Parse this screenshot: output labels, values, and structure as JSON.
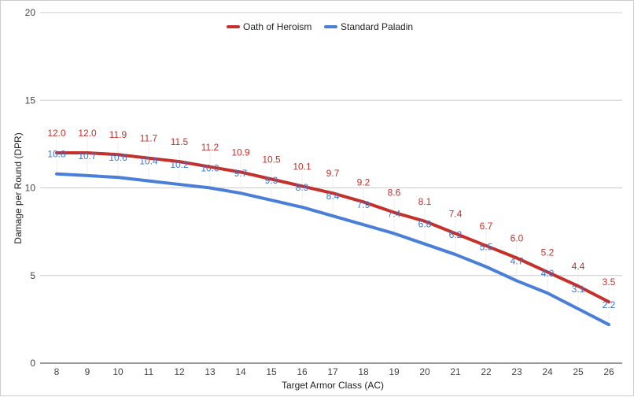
{
  "chart_data": {
    "type": "line",
    "title": "",
    "xlabel": "Target Armor Class (AC)",
    "ylabel": "Damage per Round (DPR)",
    "x": [
      8,
      9,
      10,
      11,
      12,
      13,
      14,
      15,
      16,
      17,
      18,
      19,
      20,
      21,
      22,
      23,
      24,
      25,
      26
    ],
    "ylim": [
      0,
      20
    ],
    "yticks": [
      0,
      5,
      10,
      15,
      20
    ],
    "grid": true,
    "legend_position": "top",
    "data_labels": true,
    "series": [
      {
        "name": "Oath of Heroism",
        "color": "#c5302a",
        "values": [
          12.0,
          12.0,
          11.9,
          11.7,
          11.5,
          11.2,
          10.9,
          10.5,
          10.1,
          9.7,
          9.2,
          8.6,
          8.1,
          7.4,
          6.7,
          6.0,
          5.2,
          4.4,
          3.5
        ]
      },
      {
        "name": "Standard Paladin",
        "color": "#4a7fd9",
        "values": [
          10.8,
          10.7,
          10.6,
          10.4,
          10.2,
          10.0,
          9.7,
          9.3,
          8.9,
          8.4,
          7.9,
          7.4,
          6.8,
          6.2,
          5.5,
          4.7,
          4.0,
          3.1,
          2.2
        ]
      }
    ]
  }
}
